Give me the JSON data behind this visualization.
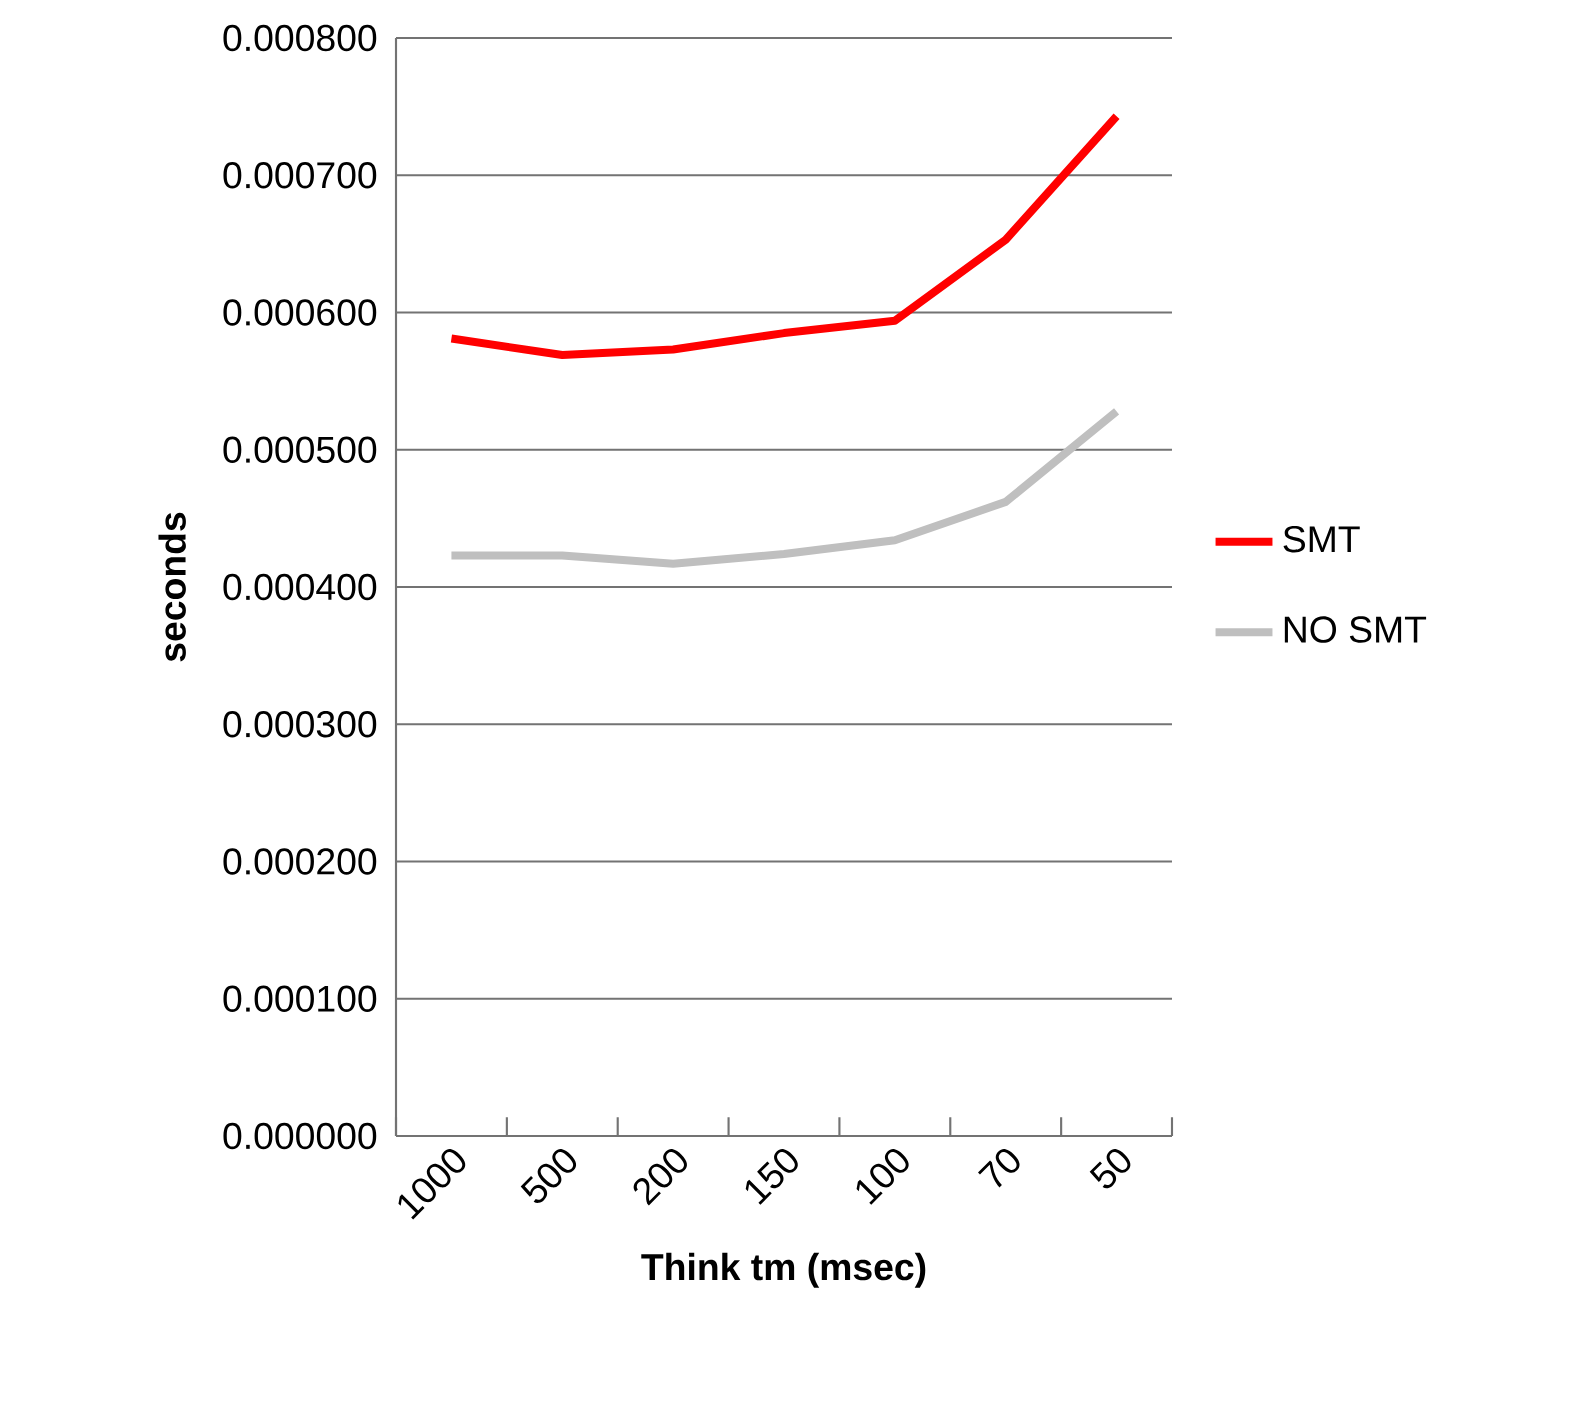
{
  "chart_data": {
    "type": "line",
    "xlabel": "Think tm (msec)",
    "ylabel": "seconds",
    "categories": [
      "1000",
      "500",
      "200",
      "150",
      "100",
      "70",
      "50"
    ],
    "series": [
      {
        "name": "SMT",
        "color": "#ff0000",
        "values": [
          0.000581,
          0.000569,
          0.000573,
          0.000585,
          0.000594,
          0.000653,
          0.000743
        ]
      },
      {
        "name": "NO SMT",
        "color": "#bfbfbf",
        "values": [
          0.000423,
          0.000423,
          0.000417,
          0.000424,
          0.000434,
          0.000462,
          0.000528
        ]
      }
    ],
    "ylim": [
      0,
      0.0008
    ],
    "yticks": [
      {
        "value": 0,
        "label": "0.000000"
      },
      {
        "value": 0.0001,
        "label": "0.000100"
      },
      {
        "value": 0.0002,
        "label": "0.000200"
      },
      {
        "value": 0.0003,
        "label": "0.000300"
      },
      {
        "value": 0.0004,
        "label": "0.000400"
      },
      {
        "value": 0.0005,
        "label": "0.000500"
      },
      {
        "value": 0.0006,
        "label": "0.000600"
      },
      {
        "value": 0.0007,
        "label": "0.000700"
      },
      {
        "value": 0.0008,
        "label": "0.000800"
      }
    ],
    "grid": "y",
    "legend": "right",
    "marker": "none",
    "line_style": "solid"
  }
}
